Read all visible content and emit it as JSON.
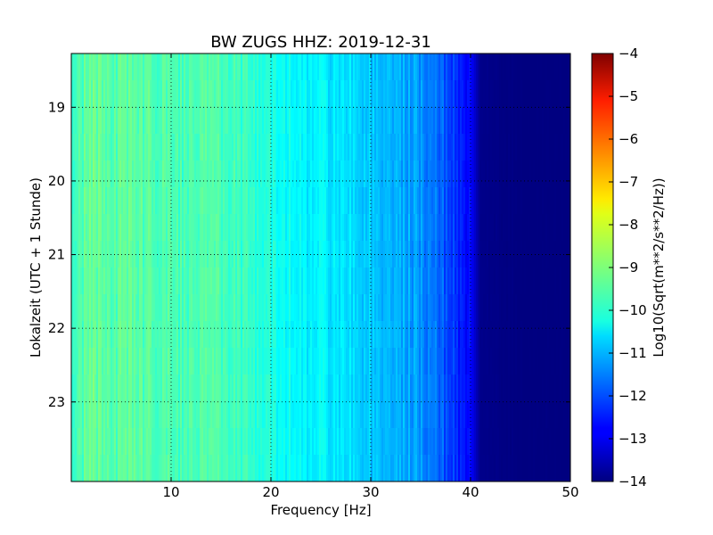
{
  "chart_data": {
    "type": "heatmap",
    "title": "BW ZUGS HHZ: 2019-12-31",
    "xlabel": "Frequency [Hz]",
    "ylabel": "Lokalzeit (UTC + 1 Stunde)",
    "xlim": [
      0,
      50
    ],
    "ylim": [
      18.27,
      24.08
    ],
    "y_inverted": true,
    "x_ticks": [
      10,
      20,
      30,
      40,
      50
    ],
    "y_ticks": [
      19,
      20,
      21,
      22,
      23
    ],
    "grid": true,
    "colormap": "jet",
    "colorbar": {
      "label": "Log10(Sqrt(m**2/s**2/Hz))",
      "range": [
        -14,
        -4
      ],
      "ticks": [
        -4,
        -5,
        -6,
        -7,
        -8,
        -9,
        -10,
        -11,
        -12,
        -13,
        -14
      ]
    },
    "spectrum_profile": {
      "frequency_hz": [
        0,
        2,
        5,
        10,
        15,
        18,
        20,
        22,
        25,
        28,
        30,
        33,
        35,
        37,
        39,
        40,
        41,
        45,
        50
      ],
      "log10_amplitude": [
        -9.5,
        -9.3,
        -9.4,
        -9.5,
        -9.6,
        -9.8,
        -10.0,
        -10.2,
        -10.4,
        -10.6,
        -10.8,
        -11.0,
        -11.3,
        -11.8,
        -12.4,
        -12.7,
        -13.9,
        -14.0,
        -14.0
      ]
    }
  }
}
